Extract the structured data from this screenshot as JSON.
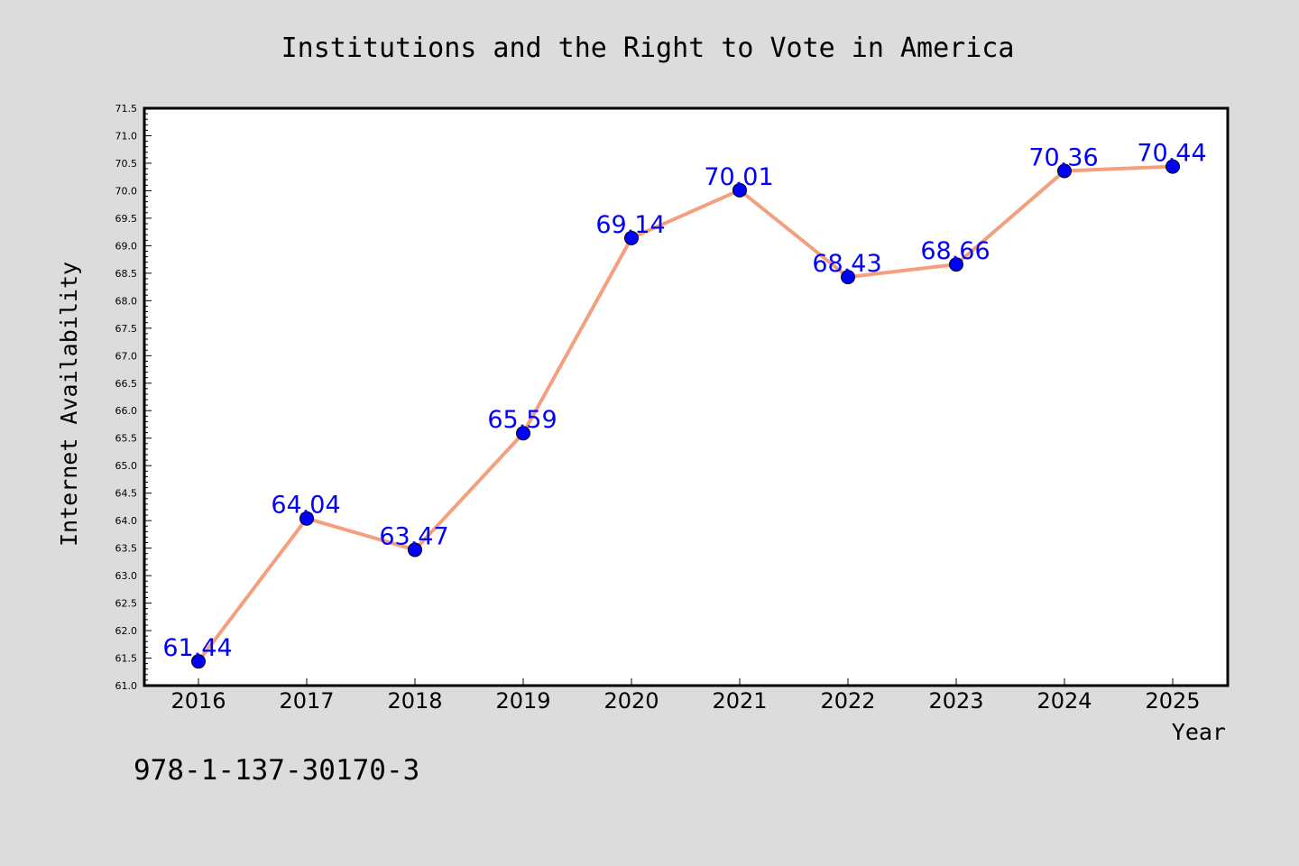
{
  "chart_data": {
    "type": "line",
    "title": "Institutions and the Right to Vote in America",
    "xlabel": "Year",
    "ylabel": "Internet Availability",
    "footer_text": "978-1-137-30170-3",
    "categories": [
      "2016",
      "2017",
      "2018",
      "2019",
      "2020",
      "2021",
      "2022",
      "2023",
      "2024",
      "2025"
    ],
    "series": [
      {
        "values": [
          61.44,
          64.04,
          63.47,
          65.59,
          69.14,
          70.01,
          68.43,
          68.66,
          70.36,
          70.44
        ],
        "data_labels": [
          "61.44",
          "64.04",
          "63.47",
          "65.59",
          "69.14",
          "70.01",
          "68.43",
          "68.66",
          "70.36",
          "70.44"
        ],
        "line_color": "#f4a07e",
        "marker_color": "#0000ff"
      }
    ],
    "ylim": [
      61.0,
      71.5
    ],
    "y_ticks": [
      "61.0",
      "61.5",
      "62.0",
      "62.5",
      "63.0",
      "63.5",
      "64.0",
      "64.5",
      "65.0",
      "65.5",
      "66.0",
      "66.5",
      "67.0",
      "67.5",
      "68.0",
      "68.5",
      "69.0",
      "69.5",
      "70.0",
      "70.5",
      "71.0",
      "71.5"
    ],
    "grid": false,
    "legend": "none",
    "background_color": "#dcdcdc",
    "plot_background_color": "#ffffff",
    "label_color": "#0000ff"
  }
}
